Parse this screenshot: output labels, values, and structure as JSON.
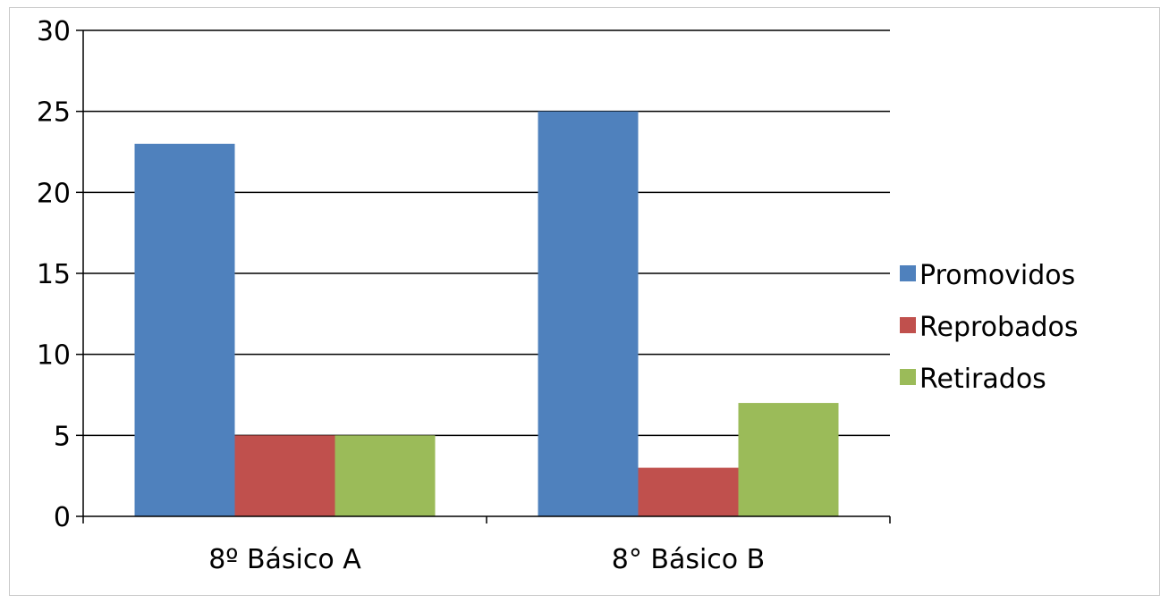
{
  "chart_data": {
    "type": "bar",
    "categories": [
      "8º Básico A",
      "8° Básico B"
    ],
    "series": [
      {
        "name": "Promovidos",
        "values": [
          23,
          25
        ],
        "color": "#4f81bd"
      },
      {
        "name": "Reprobados",
        "values": [
          5,
          3
        ],
        "color": "#c0504d"
      },
      {
        "name": "Retirados",
        "values": [
          5,
          7
        ],
        "color": "#9bbb59"
      }
    ],
    "ylim": [
      0,
      30
    ],
    "yticks": [
      0,
      5,
      10,
      15,
      20,
      25,
      30
    ],
    "grid": true,
    "legend_position": "right"
  }
}
